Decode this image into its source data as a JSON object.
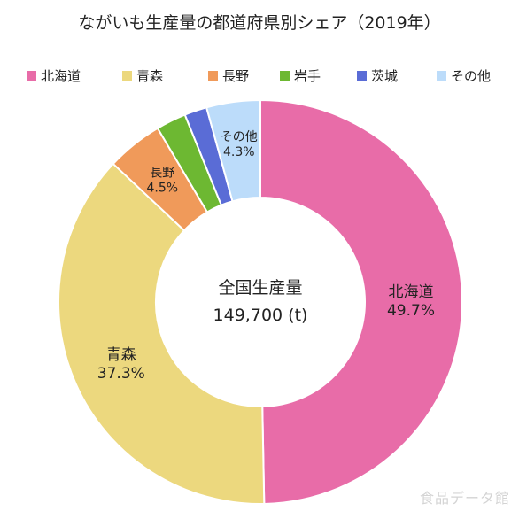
{
  "chart_data": {
    "type": "pie",
    "title": "ながいも生産量の都道府県別シェア（2019年）",
    "center_label": "全国生産量",
    "center_value": "149,700 (t)",
    "categories": [
      "北海道",
      "青森",
      "長野",
      "岩手",
      "茨城",
      "その他"
    ],
    "values": [
      49.7,
      37.3,
      4.5,
      2.4,
      1.8,
      4.3
    ],
    "value_labels": [
      "49.7%",
      "37.3%",
      "4.5%",
      "",
      "",
      "4.3%"
    ],
    "colors": [
      "#e86ca8",
      "#ecd87e",
      "#f09a5a",
      "#6db832",
      "#5a6cd6",
      "#bcdcfa"
    ],
    "legend_position": "top"
  },
  "watermark": "食品データ館"
}
